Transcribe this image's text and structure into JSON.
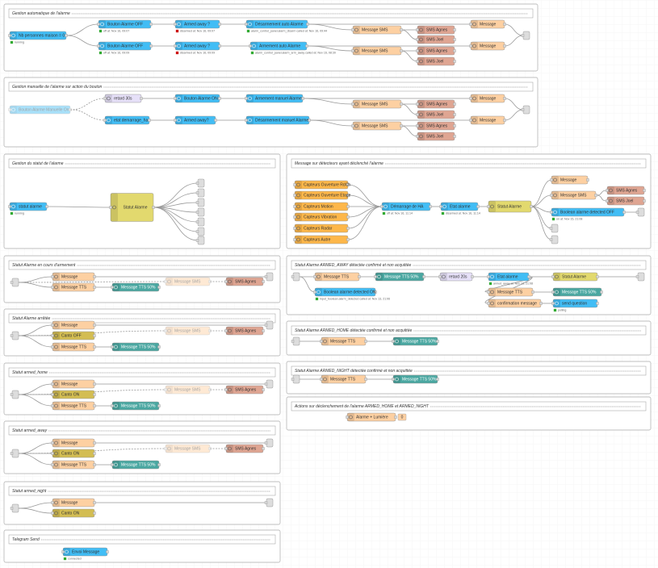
{
  "groups": [
    {
      "title": "Gestion automatique de l'alarme",
      "nodes": [
        {
          "label": "Nb personnes maison = 0",
          "status": "running"
        },
        {
          "label": "Bouton Alarme OFF",
          "status": "off at: Nov 16, 09:07"
        },
        {
          "label": "Bouton Alarme OFF",
          "status": "off at: Nov 16, 09:09"
        },
        {
          "label": "Armed away ?",
          "status": "disarmed at: Nov 16, 09:07"
        },
        {
          "label": "Armed away ?",
          "status": "disarmed at: Nov 16, 09:09"
        },
        {
          "label": "Désarmement auto Alarme",
          "status": "alarm_control_panel.alarm_disarm called at: Nov 16, 09:44"
        },
        {
          "label": "Armement auto Alarme",
          "status": "alarm_control_panel.alarm_arm_away called at: Nov 16, 08:30"
        },
        {
          "label": "Message SMS"
        },
        {
          "label": "Message SMS"
        },
        {
          "label": "SMS Agnes"
        },
        {
          "label": "SMS Joel"
        },
        {
          "label": "SMS Agnes"
        },
        {
          "label": "SMS Joel"
        },
        {
          "label": "Message"
        },
        {
          "label": "Message"
        }
      ]
    },
    {
      "title": "Gestion manuelle de l'alarme sur action du bouton",
      "nodes": [
        {
          "label": "Bouton Alarme Manuelle On"
        },
        {
          "label": "retard 30s"
        },
        {
          "label": "etat demarrage_ha"
        },
        {
          "label": "Bouton Alarme ON"
        },
        {
          "label": "Armed away?"
        },
        {
          "label": "Armement manuel Alarme"
        },
        {
          "label": "Désarmement manuel Alarme"
        },
        {
          "label": "Message SMS"
        },
        {
          "label": "Message SMS"
        },
        {
          "label": "SMS Agnes"
        },
        {
          "label": "SMS Joel"
        },
        {
          "label": "SMS Agnes"
        },
        {
          "label": "SMS Joel"
        },
        {
          "label": "Message"
        },
        {
          "label": "Message"
        }
      ]
    },
    {
      "title": "Gestion du statut de l'alarme",
      "nodes": [
        {
          "label": "statut alarme",
          "status": "running"
        },
        {
          "label": "Statut Alarme"
        }
      ]
    },
    {
      "title": "Message sur détecteurs ayant déclenché l'alarme",
      "nodes": [
        {
          "label": "Capteurs Ouverture RdCh"
        },
        {
          "label": "Capteurs Ouverture Etage"
        },
        {
          "label": "Capteurs Motion"
        },
        {
          "label": "Capteurs Vibration"
        },
        {
          "label": "Capteurs Radar"
        },
        {
          "label": "Capteurs Autre"
        },
        {
          "label": "Démarrage de HA",
          "status": "off at: Nov 16, 11:14"
        },
        {
          "label": "Etat alarme",
          "status": "disarmed at: Nov 16, 11:14"
        },
        {
          "label": "Statut Alarme"
        },
        {
          "label": "Message"
        },
        {
          "label": "Message SMS"
        },
        {
          "label": "SMS Agnes"
        },
        {
          "label": "SMS Joel"
        },
        {
          "label": "Boolean alarme detected OFF",
          "status": "on at: Nov 15, 21:08"
        }
      ]
    },
    {
      "title": "Statut Alarme en cours d'armement",
      "nodes": [
        {
          "label": "Message"
        },
        {
          "label": "Message TTS"
        },
        {
          "label": "Message TTS 50%"
        },
        {
          "label": "Message SMS"
        },
        {
          "label": "SMS Agnes"
        }
      ]
    },
    {
      "title": "Statut Alarme arrêtée",
      "nodes": [
        {
          "label": "Message"
        },
        {
          "label": "Canto OFF"
        },
        {
          "label": "Message TTS"
        },
        {
          "label": "Message TTS 50%"
        },
        {
          "label": "Message SMS"
        },
        {
          "label": "SMS Agnes"
        }
      ]
    },
    {
      "title": "Statut armed_home",
      "nodes": [
        {
          "label": "Message"
        },
        {
          "label": "Canto ON"
        },
        {
          "label": "Message TTS"
        },
        {
          "label": "Message TTS 50%"
        },
        {
          "label": "Message SMS"
        },
        {
          "label": "SMS Agnes"
        }
      ]
    },
    {
      "title": "Statut armed_away",
      "nodes": [
        {
          "label": "Message"
        },
        {
          "label": "Canto ON"
        },
        {
          "label": "Message TTS"
        },
        {
          "label": "Message TTS 50%"
        },
        {
          "label": "Message SMS"
        },
        {
          "label": "SMS Agnes"
        }
      ]
    },
    {
      "title": "Statut armed_night",
      "nodes": [
        {
          "label": "Message"
        },
        {
          "label": "Canto ON"
        }
      ]
    },
    {
      "title": "Telegram Send",
      "nodes": [
        {
          "label": "Envoi Message",
          "status": "connected"
        }
      ]
    },
    {
      "title": "Statut Alarme ARMED_AWAY détectée confirmé et non acquittée",
      "nodes": [
        {
          "label": "Message TTS"
        },
        {
          "label": "Message TTS 50%"
        },
        {
          "label": "Boolean alarme detected ON",
          "status": "input_boolean.alarm_detected called at: Nov 13, 21:06"
        },
        {
          "label": "retard 20s"
        },
        {
          "label": "Etat alarme",
          "status": "armed_away at: Nov 13, 21:08"
        },
        {
          "label": "Statut Alarme"
        },
        {
          "label": "Message TTS"
        },
        {
          "label": "Message TTS 50%"
        },
        {
          "label": "confirmation message"
        },
        {
          "label": "send question",
          "status": "polling"
        }
      ]
    },
    {
      "title": "Statut Alarme ARMED_HOME détectée confirmé et non acquittée",
      "nodes": [
        {
          "label": "Message TTS"
        },
        {
          "label": "Message TTS 50%"
        }
      ]
    },
    {
      "title": "Statut Alarme ARMED_NIGHT détectée confirmé et non acquittée",
      "nodes": [
        {
          "label": "Message TTS"
        },
        {
          "label": "Message TTS 50%"
        }
      ]
    },
    {
      "title": "Actions sur déclenchement de l'alarme ARMED_HOME et ARMED_NIGHT",
      "nodes": [
        {
          "label": "Alarme + Lumière",
          "badge": "0"
        }
      ]
    }
  ]
}
